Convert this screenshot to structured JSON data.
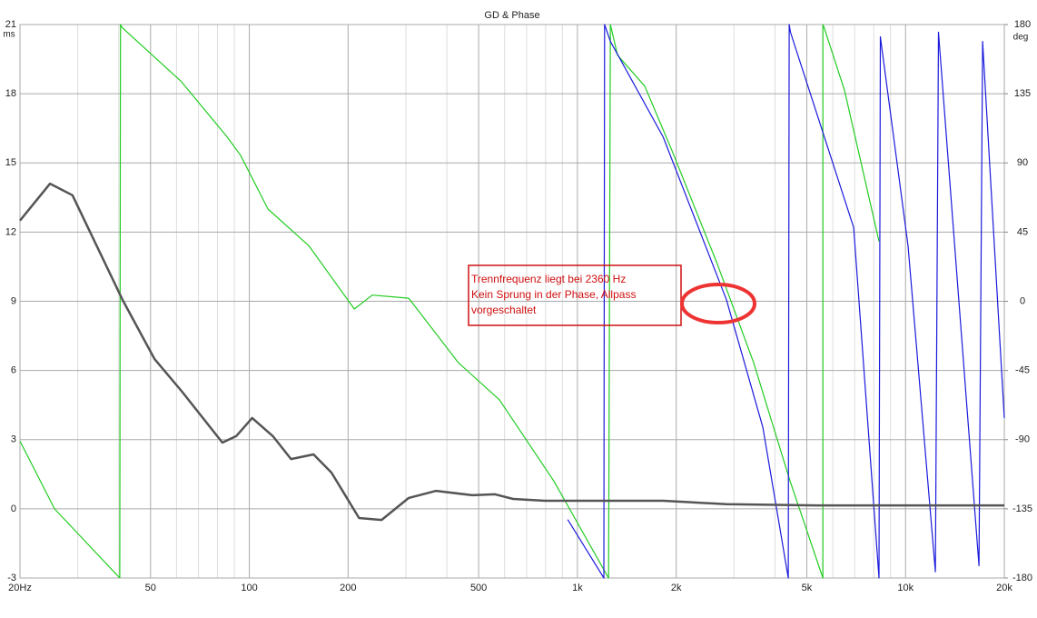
{
  "chart_data": {
    "type": "line",
    "title": "GD & Phase",
    "ylabel": "ms",
    "y2label": "deg",
    "xscale": "log",
    "xlim": [
      20,
      20000
    ],
    "xticks": [
      {
        "value": 20,
        "label": "20Hz"
      },
      50,
      100,
      200,
      500,
      {
        "value": 1000,
        "label": "1k"
      },
      {
        "value": 2000,
        "label": "2k"
      },
      {
        "value": 5000,
        "label": "5k"
      },
      {
        "value": 10000,
        "label": "10k"
      },
      {
        "value": 20000,
        "label": "20k"
      }
    ],
    "xminorticks": [
      30,
      40,
      60,
      70,
      80,
      90,
      300,
      400,
      600,
      700,
      800,
      900,
      3000,
      4000,
      6000,
      7000,
      8000,
      9000
    ],
    "ylim": [
      -3,
      21
    ],
    "yticks": [
      -3,
      0,
      3,
      6,
      9,
      12,
      15,
      18,
      21
    ],
    "y2lim": [
      -180,
      180
    ],
    "y2ticks": [
      -180,
      -135,
      -90,
      -45,
      0,
      45,
      90,
      135,
      180
    ],
    "grid": true,
    "series": [
      {
        "color": "#22cc22",
        "axis": "y2",
        "x": [
          20,
          25.5,
          40.3,
          40.5,
          41,
          62,
          85.5,
          94,
          114,
          152,
          209,
          237,
          306,
          434,
          578,
          848,
          1244,
          1260,
          1325,
          1604,
          1942,
          2672,
          3445,
          4448,
          5600,
          5600,
          5650,
          6520,
          8300
        ],
        "values": [
          -91,
          -135,
          -180,
          180,
          178,
          143,
          107,
          95,
          60,
          36,
          -5,
          4,
          2,
          -40,
          -64,
          -117,
          -180,
          180,
          160,
          140,
          98,
          24,
          -40,
          -117,
          -180,
          180,
          178,
          137,
          39
        ]
      },
      {
        "color": "#1a1adc",
        "axis": "y2",
        "x": [
          934,
          1204,
          1210,
          1260,
          1824,
          2845,
          3674,
          4392,
          4420,
          4460,
          6950,
          8300,
          8380,
          10180,
          12330,
          12600,
          16740,
          17180,
          20000
        ],
        "values": [
          -142,
          -180,
          180,
          169,
          107,
          1,
          -82,
          -180,
          180,
          175,
          48,
          -180,
          172,
          36,
          -176,
          175,
          -172,
          169,
          -76
        ]
      },
      {
        "color": "#555555",
        "axis": "y",
        "x": [
          20,
          24.7,
          28.9,
          41.1,
          51.4,
          62.2,
          82.8,
          91.2,
          102,
          118,
          134,
          157,
          178,
          216,
          253,
          306,
          371,
          478,
          561,
          637,
          796,
          1094,
          1824,
          2845,
          5380,
          20000
        ],
        "values": [
          12.5,
          14.1,
          13.6,
          9.06,
          6.5,
          5.1,
          2.87,
          3.15,
          3.94,
          3.15,
          2.16,
          2.36,
          1.57,
          -0.4,
          -0.48,
          0.47,
          0.78,
          0.59,
          0.63,
          0.43,
          0.35,
          0.35,
          0.35,
          0.2,
          0.15,
          0.15
        ]
      }
    ],
    "annotation": [
      "Trennfrequenz liegt bei 2360 Hz",
      "Kein Sprung in der Phase, Allpass",
      "vorgeschaltet"
    ]
  }
}
